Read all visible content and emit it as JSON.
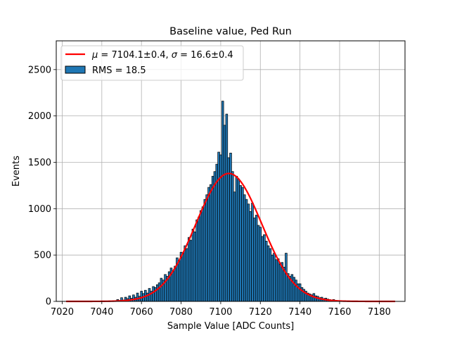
{
  "chart_data": {
    "type": "bar",
    "title": "Baseline value, Ped Run",
    "xlabel": "Sample Value [ADC Counts]",
    "ylabel": "Events",
    "xlim": [
      7017,
      7193
    ],
    "ylim": [
      0,
      2810
    ],
    "x_ticks": [
      7020,
      7040,
      7060,
      7080,
      7100,
      7120,
      7140,
      7160,
      7180
    ],
    "y_ticks": [
      0,
      500,
      1000,
      1500,
      2000,
      2500
    ],
    "grid": true,
    "legend_position": "top-left",
    "bar_color": "#1f77b4",
    "bar_edge_color": "#000000",
    "fit_color": "#ff0000",
    "series": [
      {
        "name": "RMS = 18.5",
        "kind": "histogram",
        "bin_width": 1,
        "x": [
          7048,
          7049,
          7050,
          7051,
          7052,
          7053,
          7054,
          7055,
          7056,
          7057,
          7058,
          7059,
          7060,
          7061,
          7062,
          7063,
          7064,
          7065,
          7066,
          7067,
          7068,
          7069,
          7070,
          7071,
          7072,
          7073,
          7074,
          7075,
          7076,
          7077,
          7078,
          7079,
          7080,
          7081,
          7082,
          7083,
          7084,
          7085,
          7086,
          7087,
          7088,
          7089,
          7090,
          7091,
          7092,
          7093,
          7094,
          7095,
          7096,
          7097,
          7098,
          7099,
          7100,
          7101,
          7102,
          7103,
          7104,
          7105,
          7106,
          7107,
          7108,
          7109,
          7110,
          7111,
          7112,
          7113,
          7114,
          7115,
          7116,
          7117,
          7118,
          7119,
          7120,
          7121,
          7122,
          7123,
          7124,
          7125,
          7126,
          7127,
          7128,
          7129,
          7130,
          7131,
          7132,
          7133,
          7134,
          7135,
          7136,
          7137,
          7138,
          7139,
          7140,
          7141,
          7142,
          7143,
          7144,
          7145,
          7146,
          7147,
          7148,
          7149,
          7150,
          7151,
          7152,
          7153,
          7154,
          7155,
          7156,
          7157,
          7158,
          7159,
          7160,
          7161,
          7162
        ],
        "values": [
          20,
          10,
          40,
          15,
          45,
          30,
          60,
          35,
          70,
          45,
          90,
          55,
          110,
          85,
          120,
          90,
          140,
          110,
          160,
          150,
          180,
          200,
          250,
          230,
          290,
          270,
          320,
          360,
          330,
          380,
          470,
          440,
          530,
          520,
          600,
          570,
          690,
          660,
          780,
          750,
          880,
          910,
          980,
          1020,
          1100,
          1150,
          1230,
          1260,
          1350,
          1400,
          1480,
          1610,
          1580,
          2160,
          1900,
          2020,
          1550,
          1600,
          1400,
          1180,
          1350,
          1320,
          1250,
          1230,
          1150,
          1100,
          1050,
          970,
          1060,
          900,
          930,
          820,
          800,
          700,
          720,
          650,
          600,
          570,
          500,
          520,
          450,
          460,
          400,
          420,
          370,
          520,
          300,
          270,
          290,
          260,
          230,
          190,
          190,
          150,
          130,
          110,
          90,
          80,
          70,
          85,
          60,
          55,
          40,
          45,
          30,
          35,
          25,
          20,
          15,
          20,
          10,
          8,
          5,
          3,
          2
        ],
        "color": "#1f77b4"
      },
      {
        "name": "$\\mu = 7104.1\\pm0.4$, $\\sigma = 16.6\\pm0.4$",
        "kind": "gaussian-fit",
        "mu": 7104.1,
        "sigma": 16.6,
        "amplitude": 1380,
        "x_range": [
          7022,
          7188
        ],
        "color": "#ff0000"
      }
    ]
  },
  "legend": {
    "fit_label": {
      "mu_symbol": "μ",
      "mu_text": " = 7104.1±0.4, ",
      "sigma_symbol": "σ",
      "sigma_text": " = 16.6±0.4"
    },
    "hist_label": "RMS = 18.5"
  }
}
